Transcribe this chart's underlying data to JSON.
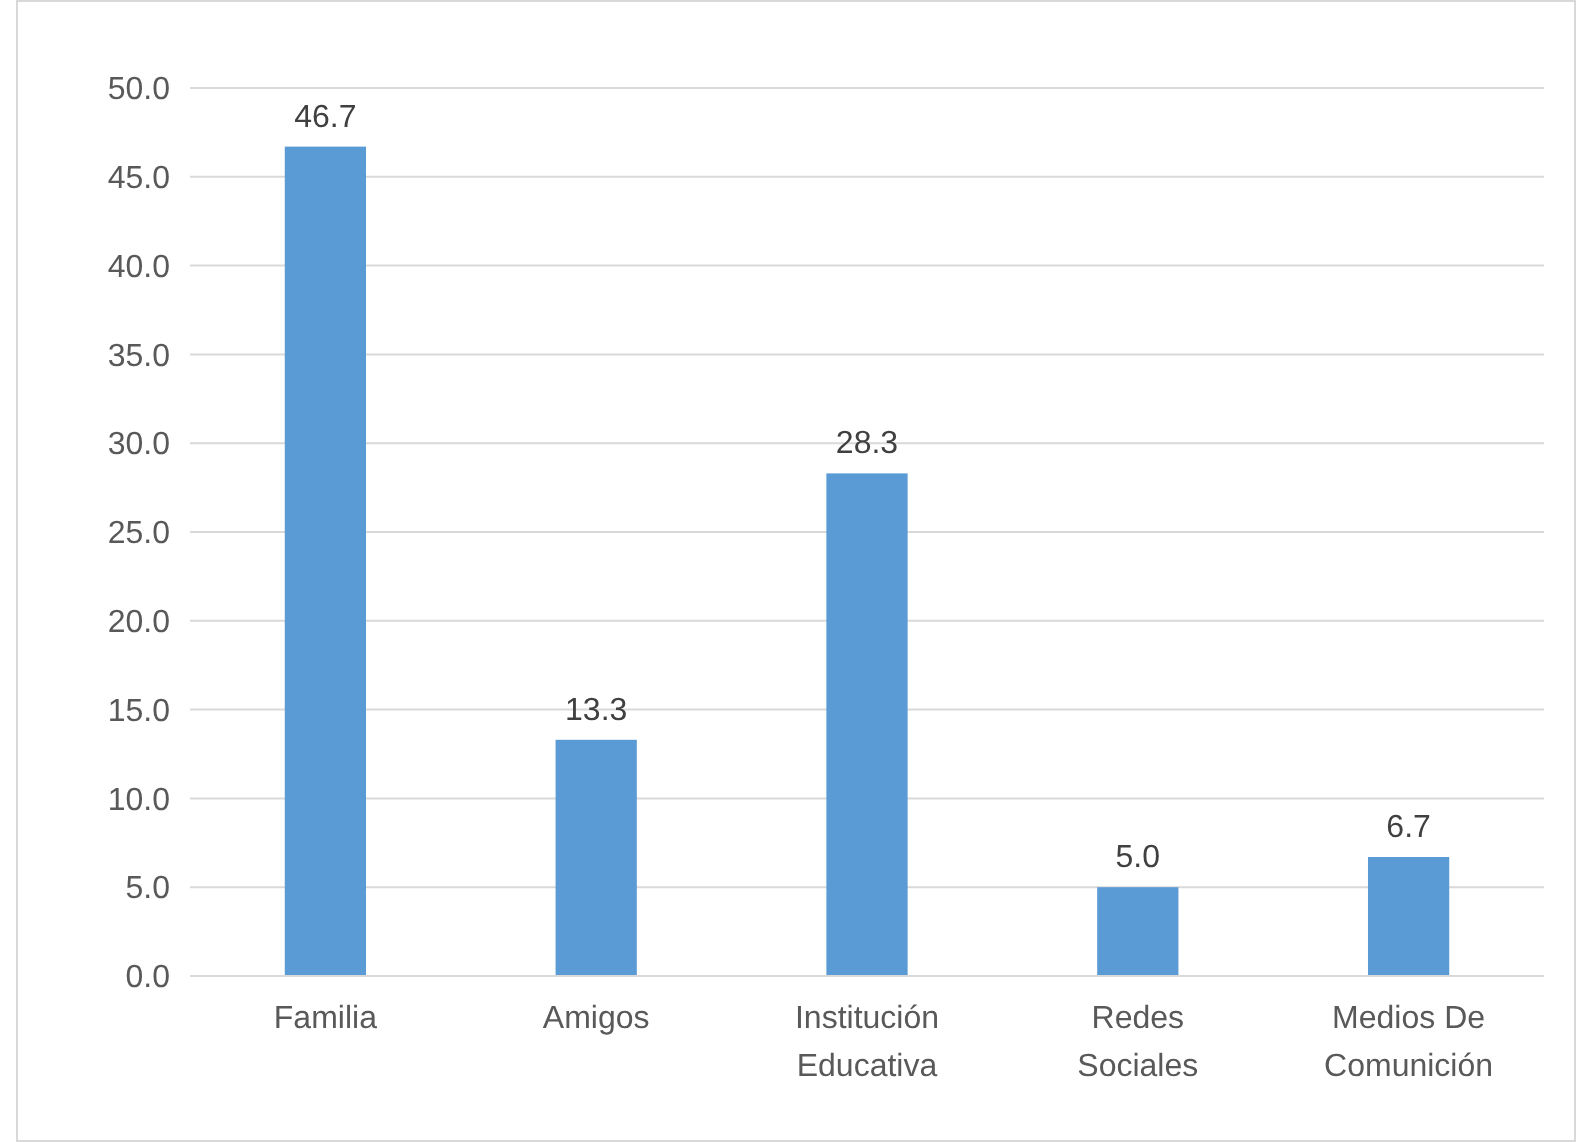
{
  "chart_data": {
    "type": "bar",
    "categories": [
      "Familia",
      "Amigos",
      "Institución Educativa",
      "Redes Sociales",
      "Medios De Comunición"
    ],
    "values": [
      46.7,
      13.3,
      28.3,
      5.0,
      6.7
    ],
    "color": "#5b9bd5",
    "value_labels": [
      "46.7",
      "13.3",
      "28.3",
      "5.0",
      "6.7"
    ],
    "ylim": [
      0,
      50
    ],
    "yticks": [
      {
        "value": 0,
        "label": "0.0"
      },
      {
        "value": 5,
        "label": "5.0"
      },
      {
        "value": 10,
        "label": "10.0"
      },
      {
        "value": 15,
        "label": "15.0"
      },
      {
        "value": 20,
        "label": "20.0"
      },
      {
        "value": 25,
        "label": "25.0"
      },
      {
        "value": 30,
        "label": "30.0"
      },
      {
        "value": 35,
        "label": "35.0"
      },
      {
        "value": 40,
        "label": "40.0"
      },
      {
        "value": 45,
        "label": "45.0"
      },
      {
        "value": 50,
        "label": "50.0"
      }
    ],
    "grid": "y"
  }
}
